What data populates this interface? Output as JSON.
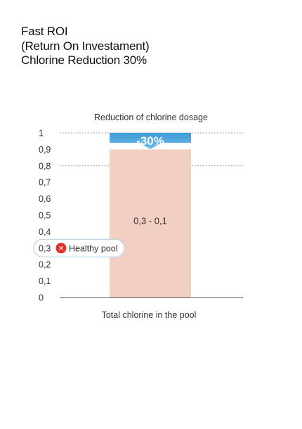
{
  "header": {
    "title_lines": [
      "Fast ROI",
      "(Return On Investament)",
      "Chlorine Reduction 30%"
    ]
  },
  "chart_data": {
    "type": "bar",
    "title": "Reduction of chlorine dosage",
    "xlabel": "Total chlorine in the pool",
    "ylabel": "",
    "ylim": [
      0,
      1
    ],
    "y_ticks": [
      "0",
      "0,1",
      "0,2",
      "0,3",
      "0,4",
      "0,5",
      "0,6",
      "0,7",
      "0,8",
      "0,9",
      "1"
    ],
    "categories": [
      ""
    ],
    "values": [
      0.9
    ],
    "bar_label": "0,3 - 0,1",
    "reduction_badge": "-30%",
    "reduction_from": 1.0,
    "reference_lines": [
      1.0,
      0.8
    ],
    "marker": {
      "value_label": "0,3",
      "text": "Healthy pool",
      "value": 0.3
    },
    "grid": false,
    "colors": {
      "bar": "#f2cfc3",
      "badge": "#4aa3dc",
      "marker_border": "#b7d3e8",
      "marker_icon": "#d9342b",
      "axis": "#555555",
      "dotted_ref": "#8a8a8a"
    }
  }
}
